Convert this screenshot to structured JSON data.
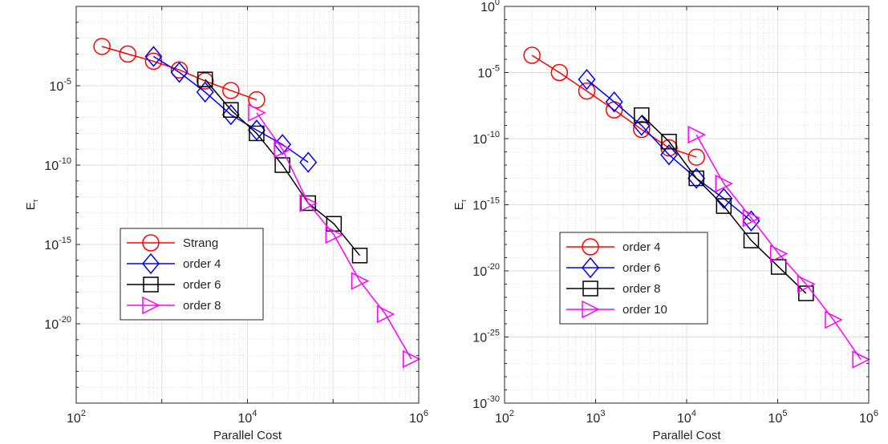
{
  "chart_data": [
    {
      "type": "line",
      "xlabel": "Parallel Cost",
      "ylabel": "E",
      "ylabel_sub": "τ",
      "x_scale": "log",
      "y_scale": "log",
      "xlim": [
        100,
        1000000
      ],
      "ylim": [
        1e-25,
        1
      ],
      "x_ticks": [
        {
          "value": 100,
          "base": "10",
          "exp": "2"
        },
        {
          "value": 10000,
          "base": "10",
          "exp": "4"
        },
        {
          "value": 1000000,
          "base": "10",
          "exp": "6"
        }
      ],
      "y_ticks": [
        {
          "value": 1e-05,
          "base": "10",
          "exp": "-5"
        },
        {
          "value": 1e-10,
          "base": "10",
          "exp": "-10"
        },
        {
          "value": 1e-15,
          "base": "10",
          "exp": "-15"
        },
        {
          "value": 1e-20,
          "base": "10",
          "exp": "-20"
        }
      ],
      "grid": true,
      "minor_grid": true,
      "legend_position": "bottom-left",
      "series": [
        {
          "name": "Strang",
          "color": "#ff0000",
          "marker": "circle",
          "x": [
            200,
            400,
            800,
            1600,
            3200,
            6400,
            12800
          ],
          "y": [
            0.003,
            0.001,
            0.00035,
            0.0001,
            2e-05,
            5e-06,
            1.3e-06
          ]
        },
        {
          "name": "order 4",
          "color": "#0000ff",
          "marker": "diamond",
          "x": [
            800,
            1600,
            3200,
            6400,
            12800,
            25600,
            51200
          ],
          "y": [
            0.0007,
            7e-05,
            4e-06,
            1.5e-07,
            1.6e-08,
            2e-09,
            1.5e-10
          ]
        },
        {
          "name": "order 6",
          "color": "#000000",
          "marker": "square",
          "x": [
            3200,
            6400,
            12800,
            25600,
            51200,
            102400,
            204800
          ],
          "y": [
            2.5e-05,
            3e-07,
            1e-08,
            1e-10,
            4e-13,
            2e-14,
            2e-16
          ]
        },
        {
          "name": "order 8",
          "color": "#ff00ff",
          "marker": "triangle-right",
          "x": [
            12800,
            25600,
            51200,
            102400,
            204800,
            409600,
            819200
          ],
          "y": [
            2e-07,
            1e-09,
            4e-13,
            4e-15,
            5e-18,
            4e-20,
            6e-23
          ]
        }
      ]
    },
    {
      "type": "line",
      "xlabel": "Parallel Cost",
      "ylabel": "E",
      "ylabel_sub": "τ",
      "x_scale": "log",
      "y_scale": "log",
      "xlim": [
        100,
        1000000
      ],
      "ylim": [
        1e-30,
        1
      ],
      "x_ticks": [
        {
          "value": 100,
          "base": "10",
          "exp": "2"
        },
        {
          "value": 1000,
          "base": "10",
          "exp": "3"
        },
        {
          "value": 10000,
          "base": "10",
          "exp": "4"
        },
        {
          "value": 100000,
          "base": "10",
          "exp": "5"
        },
        {
          "value": 1000000,
          "base": "10",
          "exp": "6"
        }
      ],
      "y_ticks": [
        {
          "value": 1,
          "base": "10",
          "exp": "0"
        },
        {
          "value": 1e-05,
          "base": "10",
          "exp": "-5"
        },
        {
          "value": 1e-10,
          "base": "10",
          "exp": "-10"
        },
        {
          "value": 1e-15,
          "base": "10",
          "exp": "-15"
        },
        {
          "value": 1e-20,
          "base": "10",
          "exp": "-20"
        },
        {
          "value": 1e-25,
          "base": "10",
          "exp": "-25"
        },
        {
          "value": 1e-30,
          "base": "10",
          "exp": "-30"
        }
      ],
      "grid": true,
      "minor_grid": true,
      "legend_position": "bottom-left",
      "series": [
        {
          "name": "order 4",
          "color": "#ff0000",
          "marker": "circle",
          "x": [
            200,
            400,
            800,
            1600,
            3200,
            6400,
            12800
          ],
          "y": [
            0.0002,
            1e-05,
            4e-07,
            1.5e-08,
            5e-10,
            2e-11,
            4e-12
          ]
        },
        {
          "name": "order 6",
          "color": "#0000ff",
          "marker": "diamond",
          "x": [
            800,
            1600,
            3200,
            6400,
            12800,
            25600,
            51200
          ],
          "y": [
            3e-06,
            6e-08,
            1e-09,
            6e-12,
            1e-13,
            3e-15,
            6e-17
          ]
        },
        {
          "name": "order 8",
          "color": "#000000",
          "marker": "square",
          "x": [
            3200,
            6400,
            12800,
            25600,
            51200,
            102400,
            204800
          ],
          "y": [
            6e-09,
            6e-11,
            1e-13,
            8e-16,
            2e-18,
            2e-20,
            2e-22
          ]
        },
        {
          "name": "order 10",
          "color": "#ff00ff",
          "marker": "triangle-right",
          "x": [
            12800,
            25600,
            51200,
            102400,
            204800,
            409600,
            819200
          ],
          "y": [
            2e-10,
            4e-14,
            1e-16,
            2e-19,
            1e-21,
            2e-24,
            2e-27
          ]
        }
      ]
    }
  ]
}
